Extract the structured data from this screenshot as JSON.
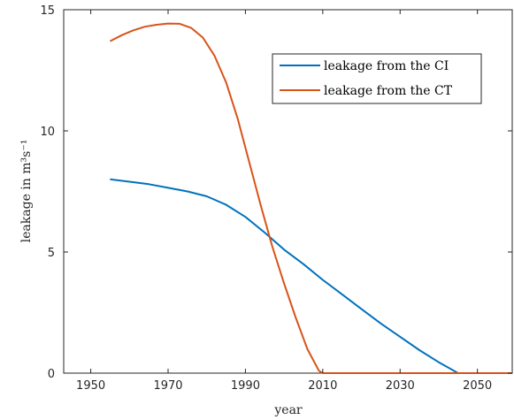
{
  "chart_data": {
    "type": "line",
    "xlabel": "year",
    "ylabel": "leakage in m³s⁻¹",
    "xlim": [
      1943,
      2059
    ],
    "ylim": [
      0,
      15
    ],
    "xticks": [
      1950,
      1970,
      1990,
      2010,
      2030,
      2050
    ],
    "yticks": [
      0,
      5,
      10,
      15
    ],
    "grid": false,
    "legend_position": "top-right",
    "series": [
      {
        "name": "leakage from the CI",
        "color": "#0072BD",
        "x": [
          1955,
          1960,
          1965,
          1970,
          1975,
          1980,
          1985,
          1990,
          1995,
          2000,
          2005,
          2010,
          2015,
          2020,
          2025,
          2030,
          2035,
          2040,
          2045,
          2050,
          2055,
          2059
        ],
        "y": [
          8.0,
          7.9,
          7.8,
          7.65,
          7.5,
          7.3,
          6.95,
          6.45,
          5.8,
          5.1,
          4.5,
          3.85,
          3.25,
          2.65,
          2.05,
          1.5,
          0.95,
          0.45,
          0.0,
          0.0,
          0.0,
          0.0
        ]
      },
      {
        "name": "leakage from the CT",
        "color": "#D95319",
        "x": [
          1955,
          1958,
          1961,
          1964,
          1967,
          1970,
          1973,
          1976,
          1979,
          1982,
          1985,
          1988,
          1991,
          1994,
          1997,
          2000,
          2003,
          2006,
          2009,
          2010,
          2020,
          2030,
          2040,
          2050,
          2059
        ],
        "y": [
          13.7,
          13.95,
          14.15,
          14.3,
          14.38,
          14.43,
          14.42,
          14.25,
          13.85,
          13.1,
          12.0,
          10.5,
          8.7,
          6.9,
          5.2,
          3.7,
          2.3,
          1.0,
          0.1,
          0.0,
          0.0,
          0.0,
          0.0,
          0.0,
          0.0
        ]
      }
    ]
  }
}
